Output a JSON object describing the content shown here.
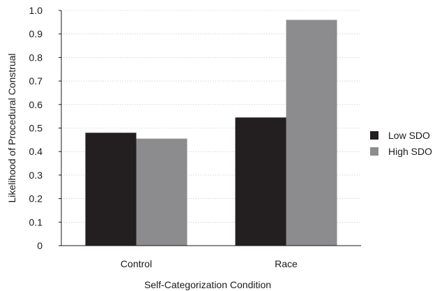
{
  "chart_data": {
    "type": "bar",
    "categories": [
      "Control",
      "Race"
    ],
    "series": [
      {
        "name": "Low SDO",
        "values": [
          0.48,
          0.545
        ],
        "color": "#231f20"
      },
      {
        "name": "High SDO",
        "values": [
          0.455,
          0.96
        ],
        "color": "#8c8c8e"
      }
    ],
    "xlabel": "Self-Categorization Condition",
    "ylabel": "Likelihood of Procedural Construal",
    "ylim": [
      0,
      1.0
    ],
    "yticks": [
      "0",
      "0.1",
      "0.2",
      "0.3",
      "0.4",
      "0.5",
      "0.6",
      "0.7",
      "0.8",
      "0.9",
      "1.0"
    ],
    "grid": true,
    "legend_position": "right"
  }
}
